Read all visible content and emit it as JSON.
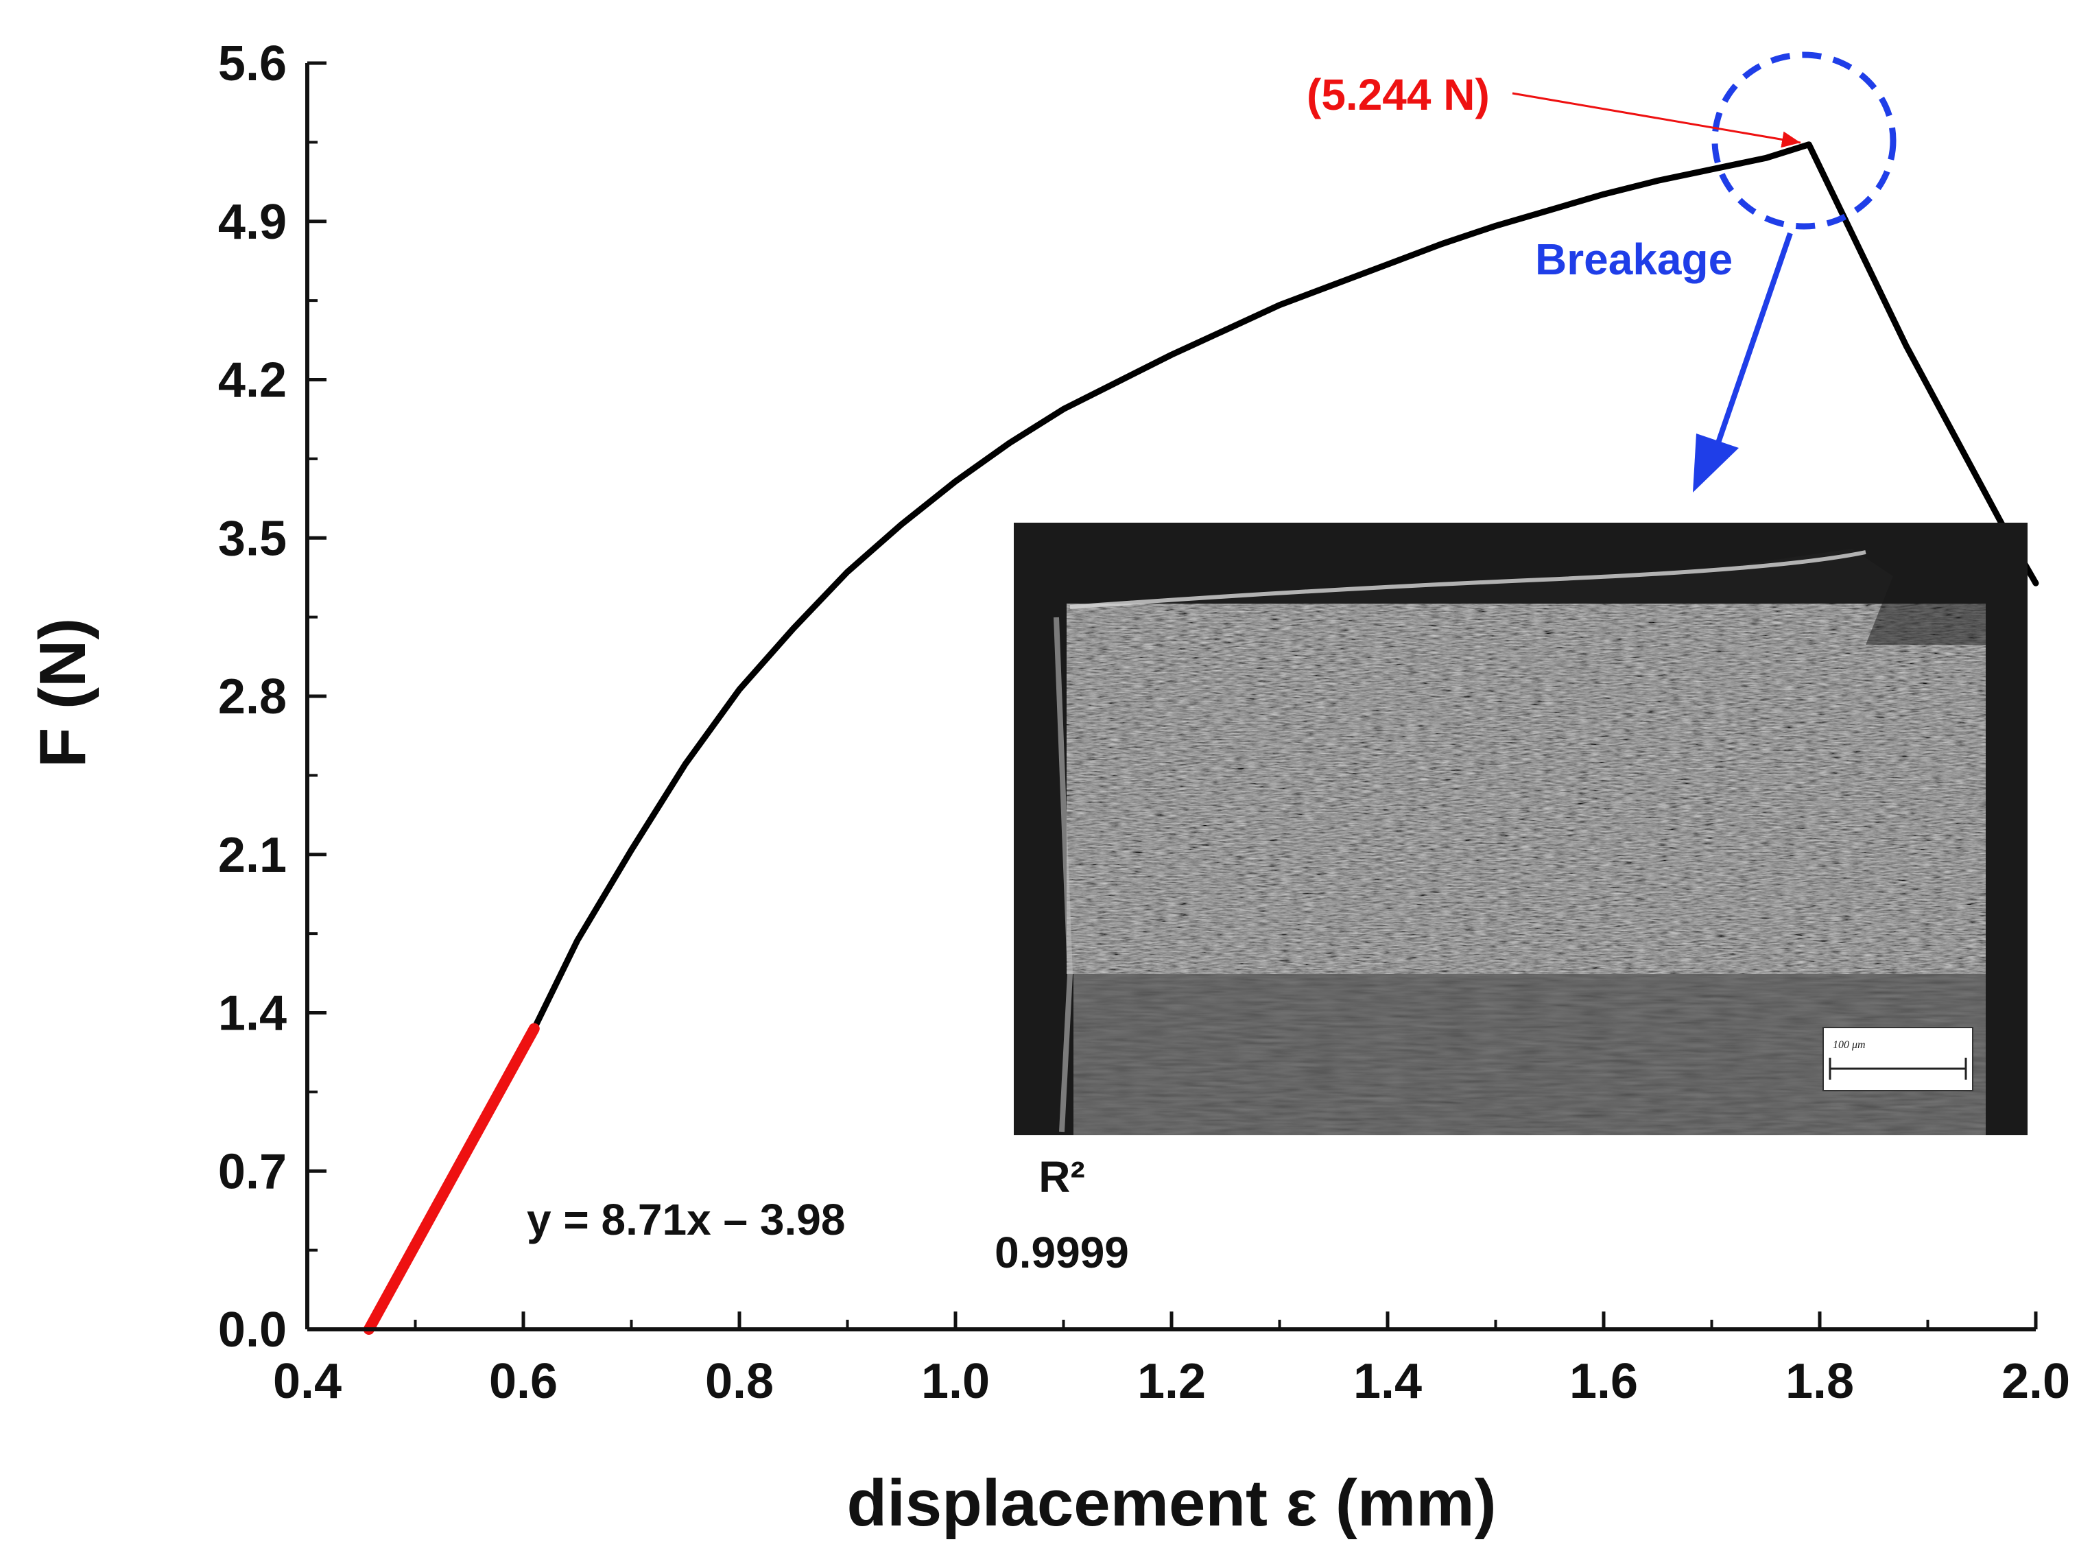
{
  "chart_data": {
    "type": "line",
    "title": "",
    "xlabel": "displacement ε (mm)",
    "ylabel": "F (N)",
    "xlim": [
      0.4,
      2.0
    ],
    "ylim": [
      0.0,
      5.6
    ],
    "x_ticks": [
      "0.4",
      "0.6",
      "0.8",
      "1.0",
      "1.2",
      "1.4",
      "1.6",
      "1.8",
      "2.0"
    ],
    "y_ticks": [
      "0.0",
      "0.7",
      "1.4",
      "2.1",
      "2.8",
      "3.5",
      "4.2",
      "4.9",
      "5.6"
    ],
    "grid": false,
    "series": [
      {
        "color": "#000000",
        "x": [
          0.457,
          0.5,
          0.55,
          0.6,
          0.61,
          0.65,
          0.7,
          0.75,
          0.8,
          0.85,
          0.9,
          0.95,
          1.0,
          1.05,
          1.1,
          1.15,
          1.2,
          1.25,
          1.3,
          1.35,
          1.4,
          1.45,
          1.5,
          1.55,
          1.6,
          1.65,
          1.7,
          1.75,
          1.79,
          1.88,
          1.97,
          2.0
        ],
        "y": [
          0.0,
          0.37,
          0.81,
          1.24,
          1.33,
          1.72,
          2.12,
          2.5,
          2.83,
          3.1,
          3.35,
          3.56,
          3.75,
          3.92,
          4.07,
          4.19,
          4.31,
          4.42,
          4.53,
          4.62,
          4.71,
          4.8,
          4.88,
          4.95,
          5.02,
          5.08,
          5.13,
          5.18,
          5.24,
          4.35,
          3.55,
          3.3
        ]
      },
      {
        "color": "#ee1111",
        "x": [
          0.457,
          0.61
        ],
        "y": [
          0.0,
          1.33
        ]
      }
    ],
    "annotations": {
      "peak_label": "(5.244 N)",
      "peak_x": 1.79,
      "peak_y": 5.244,
      "breakage_label": "Breakage",
      "equation": "y = 8.71x – 3.98",
      "r2_label": "R²",
      "r2_value": "0.9999"
    },
    "inset": {
      "scale_bar_label": "100 μm"
    },
    "colors": {
      "fit_segment": "#ee1111",
      "peak_annotation": "#ee1111",
      "breakage_annotation": "#1f3ee8",
      "curve": "#000000"
    }
  }
}
